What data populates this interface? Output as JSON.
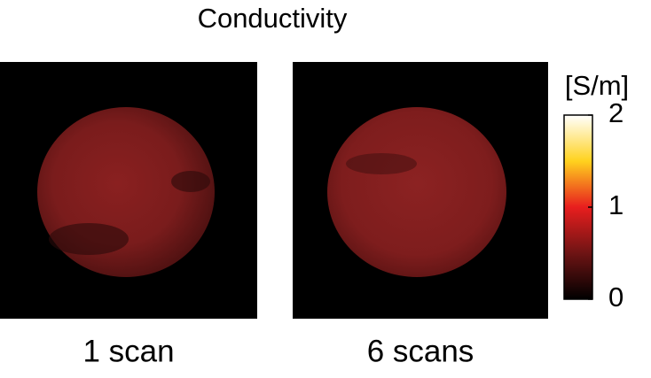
{
  "chart_data": {
    "type": "heatmap",
    "title": "Conductivity",
    "panels": [
      {
        "label": "1 scan"
      },
      {
        "label": "6 scans"
      }
    ],
    "colorbar": {
      "label": "[S/m]",
      "lim": [
        0,
        2
      ],
      "ticks": [
        0,
        1,
        2
      ],
      "colormap": [
        "#000000",
        "#6e1414",
        "#e81e1e",
        "#ffd21e",
        "#ffffff"
      ]
    }
  }
}
